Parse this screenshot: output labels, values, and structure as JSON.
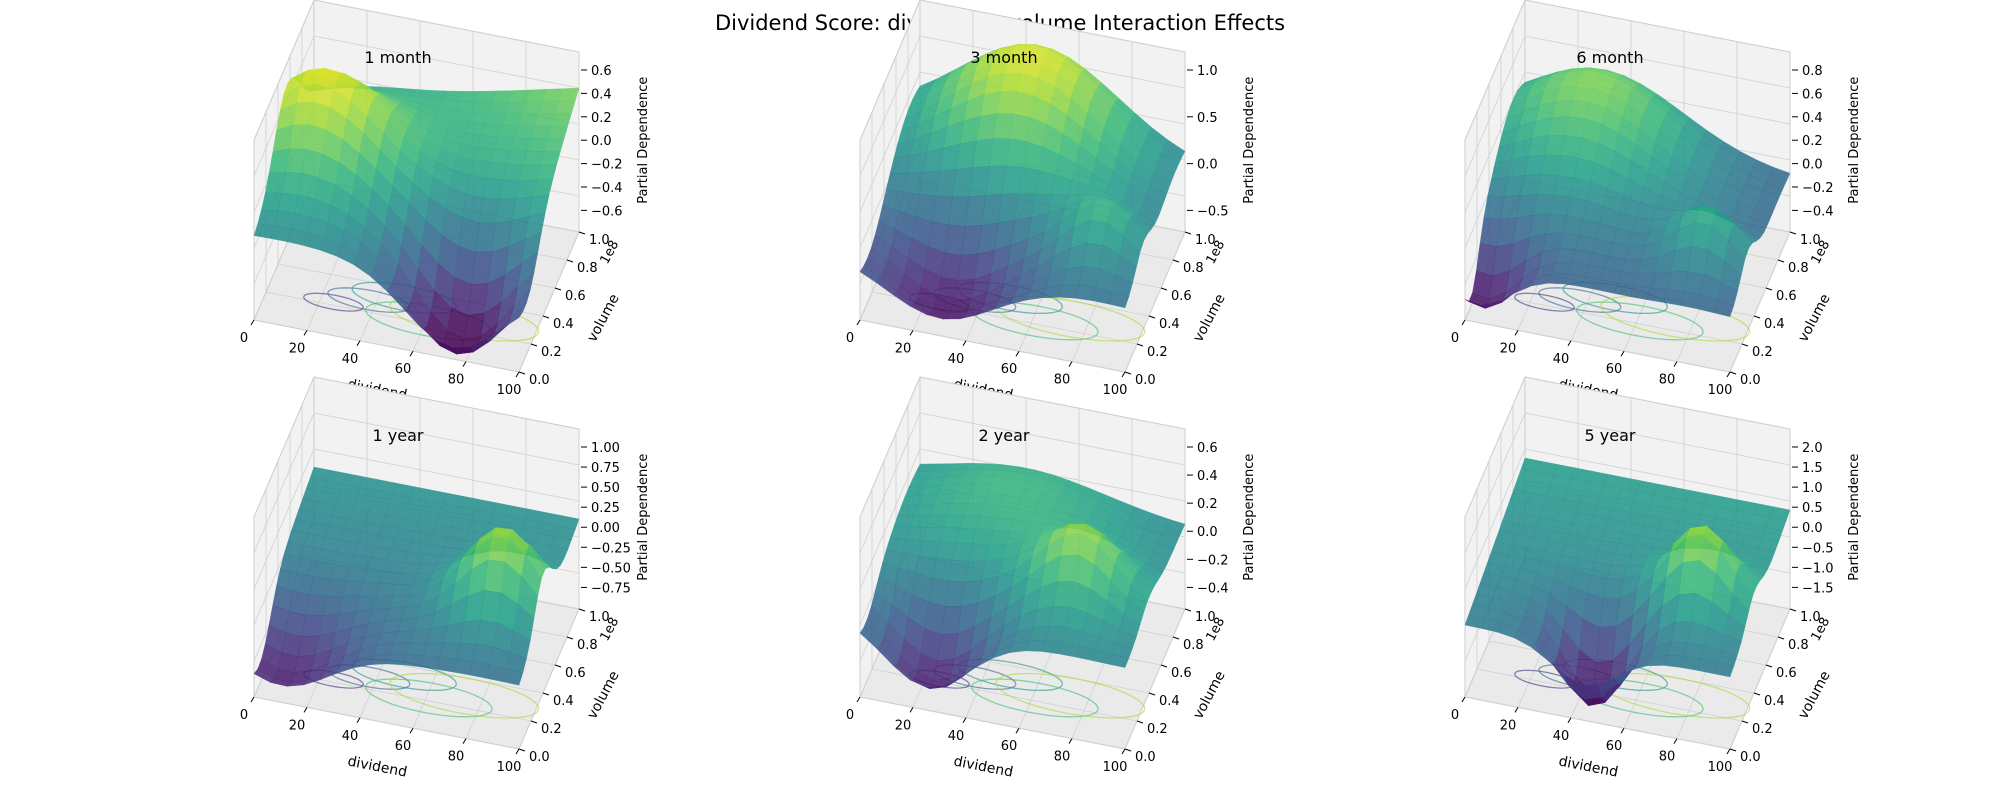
{
  "figure": {
    "title": "Dividend Score: dividend × volume Interaction Effects"
  },
  "chart_data": [
    {
      "type": "surface3d",
      "title": "1 month",
      "xlabel": "dividend",
      "ylabel": "volume",
      "zlabel": "Partial Dependence",
      "xticks": [
        "0",
        "20",
        "40",
        "60",
        "80",
        "100"
      ],
      "yticks": [
        "0.0",
        "0.2",
        "0.4",
        "0.6",
        "0.8",
        "1.0"
      ],
      "y_offset_label": "1e8",
      "zticks": [
        "0.6",
        "0.4",
        "0.2",
        "0.0",
        "−0.2",
        "−0.4",
        "−0.6"
      ],
      "zlim": [
        -0.7,
        0.65
      ],
      "colormap": "viridis",
      "contour_projection": true
    },
    {
      "type": "surface3d",
      "title": "3 month",
      "xlabel": "dividend",
      "ylabel": "volume",
      "zlabel": "Partial Dependence",
      "xticks": [
        "0",
        "20",
        "40",
        "60",
        "80",
        "100"
      ],
      "yticks": [
        "0.0",
        "0.2",
        "0.4",
        "0.6",
        "0.8",
        "1.0"
      ],
      "y_offset_label": "1e8",
      "zticks": [
        "1.0",
        "0.5",
        "0.0",
        "−0.5"
      ],
      "zlim": [
        -0.9,
        1.1
      ],
      "colormap": "viridis",
      "contour_projection": true
    },
    {
      "type": "surface3d",
      "title": "6 month",
      "xlabel": "dividend",
      "ylabel": "volume",
      "zlabel": "Partial Dependence",
      "xticks": [
        "0",
        "20",
        "40",
        "60",
        "80",
        "100"
      ],
      "yticks": [
        "0.0",
        "0.2",
        "0.4",
        "0.6",
        "0.8",
        "1.0"
      ],
      "y_offset_label": "1e8",
      "zticks": [
        "0.8",
        "0.6",
        "0.4",
        "0.2",
        "0.0",
        "−0.2",
        "−0.4"
      ],
      "zlim": [
        -0.5,
        0.85
      ],
      "colormap": "viridis",
      "contour_projection": true
    },
    {
      "type": "surface3d",
      "title": "1 year",
      "xlabel": "dividend",
      "ylabel": "volume",
      "zlabel": "Partial Dependence",
      "xticks": [
        "0",
        "20",
        "40",
        "60",
        "80",
        "100"
      ],
      "yticks": [
        "0.0",
        "0.2",
        "0.4",
        "0.6",
        "0.8",
        "1.0"
      ],
      "y_offset_label": "1e8",
      "zticks": [
        "1.00",
        "0.75",
        "0.50",
        "0.25",
        "0.00",
        "−0.25",
        "−0.50",
        "−0.75"
      ],
      "zlim": [
        -0.85,
        1.05
      ],
      "colormap": "viridis",
      "contour_projection": true
    },
    {
      "type": "surface3d",
      "title": "2 year",
      "xlabel": "dividend",
      "ylabel": "volume",
      "zlabel": "Partial Dependence",
      "xticks": [
        "0",
        "20",
        "40",
        "60",
        "80",
        "100"
      ],
      "yticks": [
        "0.0",
        "0.2",
        "0.4",
        "0.6",
        "0.8",
        "1.0"
      ],
      "y_offset_label": "1e8",
      "zticks": [
        "0.6",
        "0.4",
        "0.2",
        "0.0",
        "−0.2",
        "−0.4"
      ],
      "zlim": [
        -0.5,
        0.7
      ],
      "colormap": "viridis",
      "contour_projection": true
    },
    {
      "type": "surface3d",
      "title": "5 year",
      "xlabel": "dividend",
      "ylabel": "volume",
      "zlabel": "Partial Dependence",
      "xticks": [
        "0",
        "20",
        "40",
        "60",
        "80",
        "100"
      ],
      "yticks": [
        "0.0",
        "0.2",
        "0.4",
        "0.6",
        "0.8",
        "1.0"
      ],
      "y_offset_label": "1e8",
      "zticks": [
        "2.0",
        "1.5",
        "1.0",
        "0.5",
        "0.0",
        "−0.5",
        "−1.0",
        "−1.5"
      ],
      "zlim": [
        -1.6,
        2.1
      ],
      "colormap": "viridis",
      "contour_projection": true
    }
  ]
}
